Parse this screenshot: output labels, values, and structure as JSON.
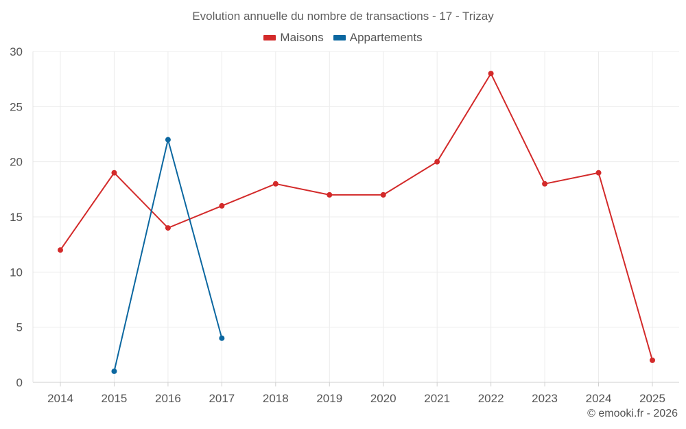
{
  "chart_data": {
    "type": "line",
    "title": "Evolution annuelle du nombre de transactions - 17 - Trizay",
    "categories": [
      "2014",
      "2015",
      "2016",
      "2017",
      "2018",
      "2019",
      "2020",
      "2021",
      "2022",
      "2023",
      "2024",
      "2025"
    ],
    "ylim": [
      0,
      30
    ],
    "yticks": [
      "0",
      "5",
      "10",
      "15",
      "20",
      "25",
      "30"
    ],
    "grid": true,
    "legend_position": "top-center",
    "series": [
      {
        "name": "Maisons",
        "color": "#d32a2a",
        "values": [
          12,
          19,
          14,
          16,
          18,
          17,
          17,
          20,
          28,
          18,
          19,
          2
        ]
      },
      {
        "name": "Appartements",
        "color": "#0b67a0",
        "values": [
          null,
          1,
          22,
          4,
          null,
          null,
          null,
          null,
          null,
          null,
          null,
          null
        ]
      }
    ],
    "xlabel": "",
    "ylabel": ""
  },
  "credit": "© emooki.fr - 2026"
}
